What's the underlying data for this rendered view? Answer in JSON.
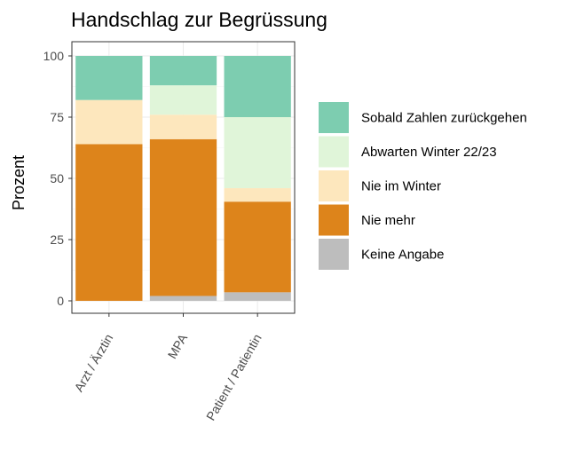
{
  "chart_data": {
    "type": "bar",
    "stacked": true,
    "title": "Handschlag zur Begrüssung",
    "xlabel": "",
    "ylabel": "Prozent",
    "ylim": [
      0,
      100
    ],
    "yticks": [
      0,
      25,
      50,
      75,
      100
    ],
    "grid": true,
    "legend_position": "right",
    "categories": [
      "Arzt / Ärztin",
      "MPA",
      "Patient / Patientin"
    ],
    "series": [
      {
        "name": "Keine Angabe",
        "color": "#bdbdbd",
        "values": [
          0,
          2,
          3.5
        ]
      },
      {
        "name": "Nie mehr",
        "color": "#dd841b",
        "values": [
          64,
          64,
          37
        ]
      },
      {
        "name": "Nie im Winter",
        "color": "#fde7bd",
        "values": [
          18,
          10,
          5.5
        ]
      },
      {
        "name": "Abwarten Winter 22/23",
        "color": "#e0f5d9",
        "values": [
          0,
          12,
          29
        ]
      },
      {
        "name": "Sobald Zahlen zurückgehen",
        "color": "#7dcdb0",
        "values": [
          18,
          12,
          25
        ]
      }
    ],
    "legend_order": [
      "Sobald Zahlen zurückgehen",
      "Abwarten Winter 22/23",
      "Nie im Winter",
      "Nie mehr",
      "Keine Angabe"
    ]
  }
}
